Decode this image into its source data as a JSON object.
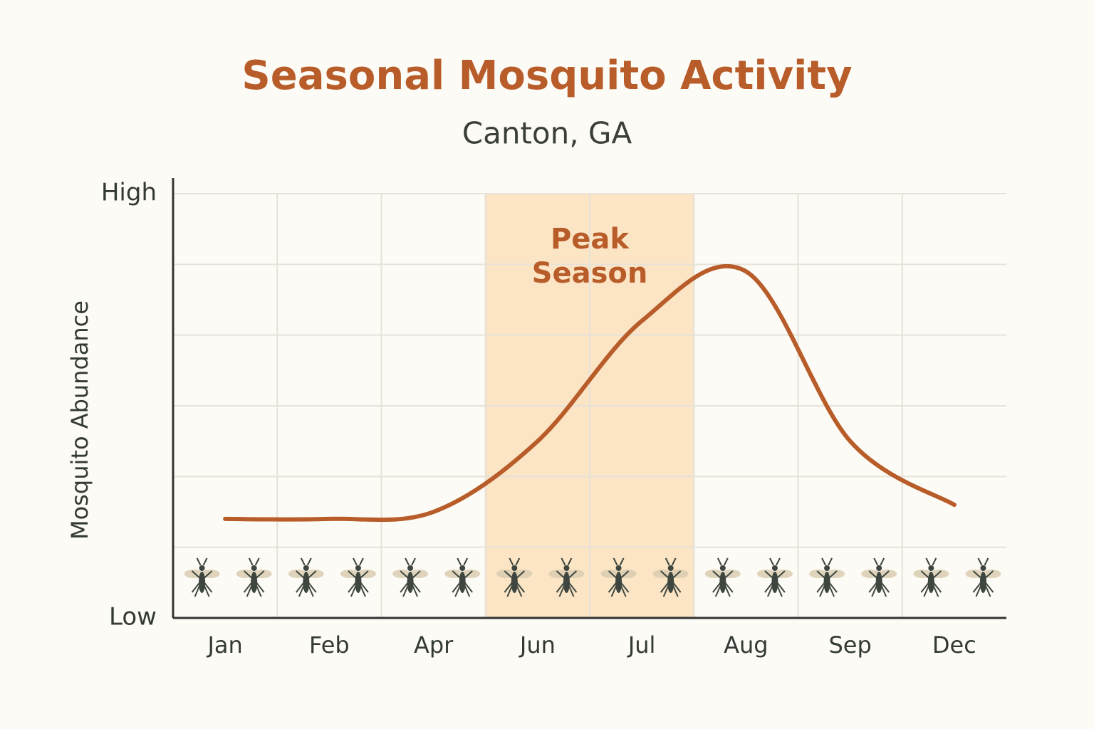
{
  "chart_data": {
    "type": "line",
    "title": "Seasonal Mosquito Activity",
    "subtitle": "Canton, GA",
    "y_label": "Mosquito Abundance",
    "categories": [
      "Jan",
      "Feb",
      "Apr",
      "Jun",
      "Jul",
      "Aug",
      "Sep",
      "Dec"
    ],
    "series": [
      {
        "name": "Mosquito Abundance",
        "color": "#b85c2a",
        "values": [
          1.4,
          1.4,
          1.5,
          2.5,
          4.2,
          4.9,
          2.5,
          1.6
        ]
      }
    ],
    "ylim": [
      0,
      6
    ],
    "yticks": [
      {
        "value": 0,
        "label": "Low"
      },
      {
        "value": 6,
        "label": "High"
      }
    ],
    "grid": true,
    "highlight": {
      "label": "Peak Season",
      "from": "Jun",
      "to": "Jul",
      "color": "#fbe5c4"
    }
  }
}
